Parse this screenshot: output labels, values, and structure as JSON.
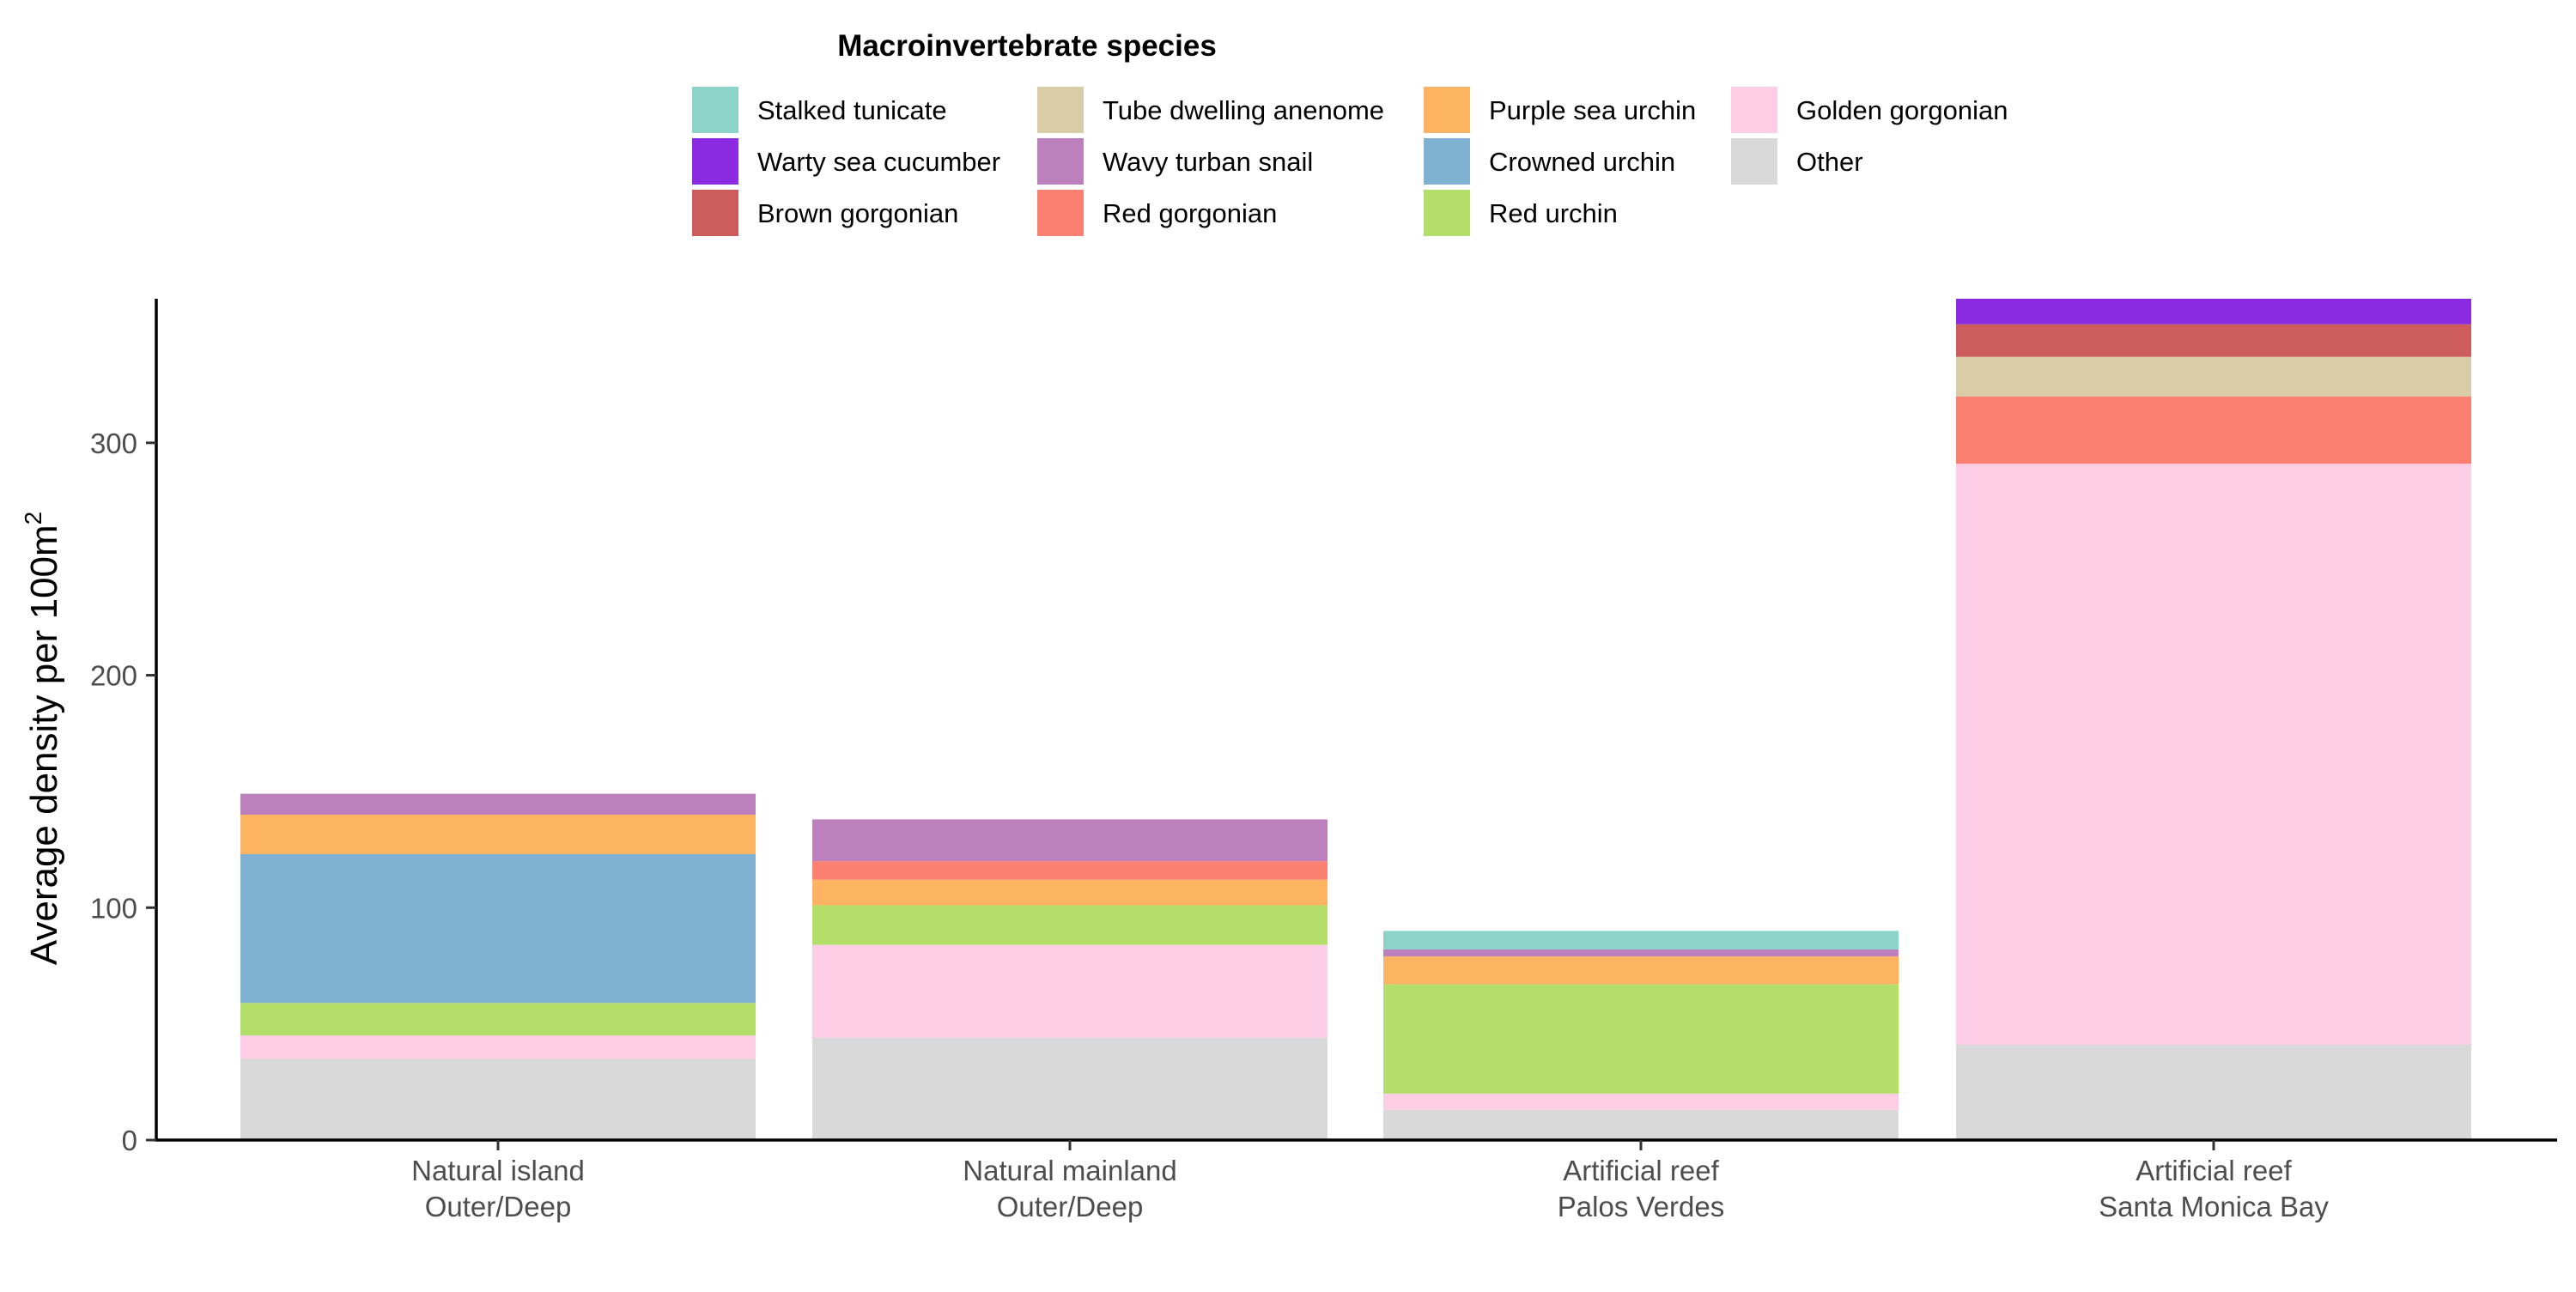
{
  "chart_data": {
    "type": "bar",
    "stacked": true,
    "legend_title": "Macroinvertebrate species",
    "legend_position": "top",
    "ylabel_main": "Average density per 100m",
    "ylabel_superscript": "2",
    "xlabel": "",
    "ylim": [
      0,
      362
    ],
    "yticks": [
      0,
      100,
      200,
      300
    ],
    "grid": false,
    "categories": [
      [
        "Natural island",
        "Outer/Deep"
      ],
      [
        "Natural mainland",
        "Outer/Deep"
      ],
      [
        "Artificial reef",
        "Palos Verdes"
      ],
      [
        "Artificial reef",
        "Santa Monica Bay"
      ]
    ],
    "legend_columns": [
      [
        "Stalked tunicate",
        "Warty sea cucumber",
        "Brown gorgonian"
      ],
      [
        "Tube dwelling anenome",
        "Wavy turban snail",
        "Red gorgonian"
      ],
      [
        "Purple sea urchin",
        "Crowned urchin",
        "Red urchin"
      ],
      [
        "Golden gorgonian",
        "Other"
      ]
    ],
    "series": [
      {
        "name": "Other",
        "color": "#d9d9d9",
        "values": [
          35,
          44,
          13,
          41
        ]
      },
      {
        "name": "Golden gorgonian",
        "color": "#fccde5",
        "values": [
          10,
          40,
          7,
          250
        ]
      },
      {
        "name": "Red urchin",
        "color": "#b3de69",
        "values": [
          14,
          17,
          47,
          0
        ]
      },
      {
        "name": "Crowned urchin",
        "color": "#80b1d3",
        "values": [
          64,
          0,
          0,
          0
        ]
      },
      {
        "name": "Purple sea urchin",
        "color": "#fdb462",
        "values": [
          17,
          11,
          12,
          0
        ]
      },
      {
        "name": "Red gorgonian",
        "color": "#fb8072",
        "values": [
          0,
          8,
          0,
          29
        ]
      },
      {
        "name": "Wavy turban snail",
        "color": "#bc80bd",
        "values": [
          9,
          18,
          3,
          0
        ]
      },
      {
        "name": "Tube dwelling anenome",
        "color": "#d9cda8",
        "values": [
          0,
          0,
          0,
          17
        ]
      },
      {
        "name": "Brown gorgonian",
        "color": "#cd5c5c",
        "values": [
          0,
          0,
          0,
          14
        ]
      },
      {
        "name": "Warty sea cucumber",
        "color": "#8a2be2",
        "values": [
          0,
          0,
          0,
          11
        ]
      },
      {
        "name": "Stalked tunicate",
        "color": "#8dd3c7",
        "values": [
          0,
          0,
          8,
          0
        ]
      }
    ]
  }
}
